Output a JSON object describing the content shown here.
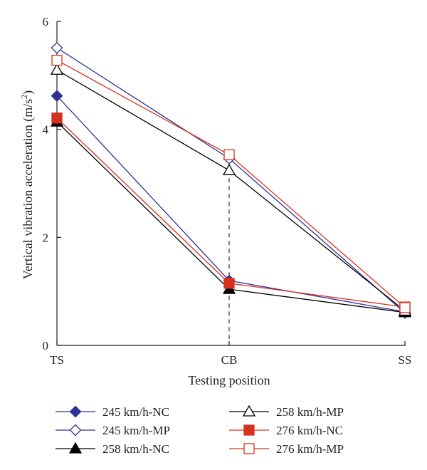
{
  "chart_data": {
    "type": "line",
    "title": "",
    "xlabel": "Testing position",
    "ylabel_main": "Vertical vibration acceleration (m/s",
    "ylabel_sup": "2",
    "ylabel_tail": ")",
    "categories": [
      "TS",
      "CB",
      "SS"
    ],
    "ylim": [
      0,
      6
    ],
    "yticks": [
      0,
      2,
      4,
      6
    ],
    "yticks_labels": [
      "0",
      "2",
      "4",
      "6"
    ],
    "grid": false,
    "legend_position": "bottom",
    "series": [
      {
        "name": "245 km/h-NC",
        "values": [
          4.62,
          1.2,
          0.62
        ],
        "color": "#2e3192",
        "marker": "diamond",
        "filled": true
      },
      {
        "name": "245 km/h-MP",
        "values": [
          5.51,
          3.46,
          0.6
        ],
        "color": "#2e3192",
        "marker": "diamond",
        "filled": false
      },
      {
        "name": "258 km/h-NC",
        "values": [
          4.14,
          1.04,
          0.61
        ],
        "color": "#000000",
        "marker": "triangle",
        "filled": true
      },
      {
        "name": "258 km/h-MP",
        "values": [
          5.1,
          3.24,
          0.64
        ],
        "color": "#000000",
        "marker": "triangle",
        "filled": false
      },
      {
        "name": "276 km/h-NC",
        "values": [
          4.21,
          1.15,
          0.71
        ],
        "color": "#d7301f",
        "marker": "square",
        "filled": true
      },
      {
        "name": "276 km/h-MP",
        "values": [
          5.28,
          3.53,
          0.7
        ],
        "color": "#d7301f",
        "marker": "square",
        "filled": false
      }
    ],
    "reference_line": {
      "category": "CB",
      "style": "dashed"
    }
  }
}
